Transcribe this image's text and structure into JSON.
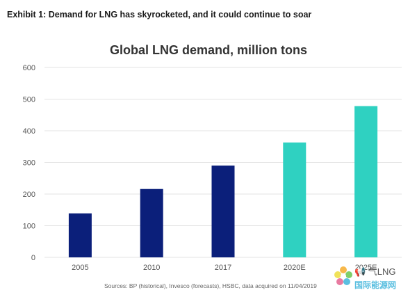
{
  "exhibit_label": "Exhibit 1: Demand for LNG has skyrocketed, and it could continue to soar",
  "source_note": "Sources: BP (historical), Invesco (forecasts), HSBC, data acquired on 11/04/2019",
  "watermark": {
    "line1": "📢 气LNG",
    "line2": "国际能源网"
  },
  "colors": {
    "historical": "#0b1f7a",
    "forecast": "#2fd1c1",
    "gridline": "#e3e3e3",
    "tick_text": "#555555"
  },
  "chart_data": {
    "type": "bar",
    "title": "Global LNG demand, million tons",
    "categories": [
      "2005",
      "2010",
      "2017",
      "2020E",
      "2025E"
    ],
    "values": [
      139,
      216,
      290,
      363,
      478
    ],
    "kind": [
      "historical",
      "historical",
      "historical",
      "forecast",
      "forecast"
    ],
    "ylim": [
      0,
      600
    ],
    "yticks": [
      0,
      100,
      200,
      300,
      400,
      500,
      600
    ],
    "xlabel": "",
    "ylabel": "",
    "grid": true,
    "legend": "none"
  }
}
